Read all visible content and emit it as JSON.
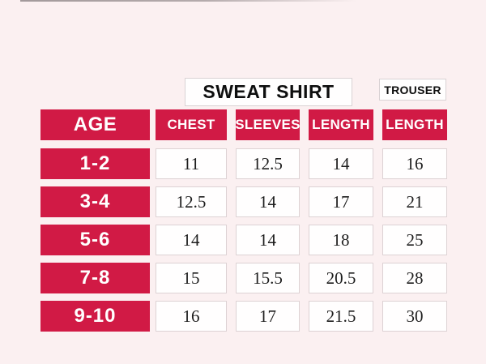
{
  "colors": {
    "accent_red": "#d11a45",
    "background": "#fbf0f1",
    "cell_background": "#fffefe",
    "cell_border": "#ddd2d4",
    "number_text": "#1d1d1d",
    "header_text": "#ffffff",
    "title_text": "#0e0e0e"
  },
  "titles": {
    "sweat_shirt": "SWEAT SHIRT",
    "trouser": "TROUSER"
  },
  "table": {
    "columns": [
      "AGE",
      "CHEST",
      "SLEEVES",
      "LENGTH",
      "LENGTH"
    ],
    "rows": [
      {
        "age": "1-2",
        "chest": "11",
        "sleeves": "12.5",
        "length": "14",
        "trouser_length": "16"
      },
      {
        "age": "3-4",
        "chest": "12.5",
        "sleeves": "14",
        "length": "17",
        "trouser_length": "21"
      },
      {
        "age": "5-6",
        "chest": "14",
        "sleeves": "14",
        "length": "18",
        "trouser_length": "25"
      },
      {
        "age": "7-8",
        "chest": "15",
        "sleeves": "15.5",
        "length": "20.5",
        "trouser_length": "28"
      },
      {
        "age": "9-10",
        "chest": "16",
        "sleeves": "17",
        "length": "21.5",
        "trouser_length": "30"
      }
    ]
  },
  "chart_data": {
    "type": "table",
    "title": "Kids size chart: Sweat Shirt and Trouser measurements by age",
    "row_header": "AGE",
    "categories": [
      "1-2",
      "3-4",
      "5-6",
      "7-8",
      "9-10"
    ],
    "column_groups": [
      {
        "group": "SWEAT SHIRT",
        "columns": [
          "CHEST",
          "SLEEVES",
          "LENGTH"
        ]
      },
      {
        "group": "TROUSER",
        "columns": [
          "LENGTH"
        ]
      }
    ],
    "series": [
      {
        "name": "SWEAT SHIRT CHEST",
        "values": [
          11,
          12.5,
          14,
          15,
          16
        ]
      },
      {
        "name": "SWEAT SHIRT SLEEVES",
        "values": [
          12.5,
          14,
          14,
          15.5,
          17
        ]
      },
      {
        "name": "SWEAT SHIRT LENGTH",
        "values": [
          14,
          17,
          18,
          20.5,
          21.5
        ]
      },
      {
        "name": "TROUSER LENGTH",
        "values": [
          16,
          21,
          25,
          28,
          30
        ]
      }
    ]
  }
}
